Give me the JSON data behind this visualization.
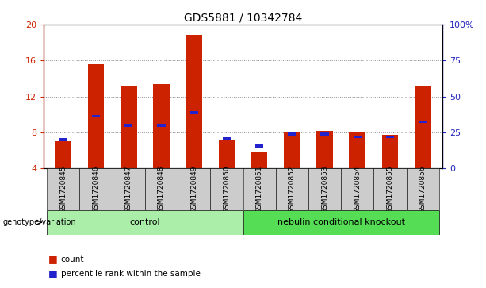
{
  "title": "GDS5881 / 10342784",
  "samples": [
    "GSM1720845",
    "GSM1720846",
    "GSM1720847",
    "GSM1720848",
    "GSM1720849",
    "GSM1720850",
    "GSM1720851",
    "GSM1720852",
    "GSM1720853",
    "GSM1720854",
    "GSM1720855",
    "GSM1720856"
  ],
  "red_values": [
    7.0,
    15.6,
    13.2,
    13.4,
    18.8,
    7.2,
    5.9,
    8.0,
    8.2,
    8.1,
    7.7,
    13.1
  ],
  "blue_values": [
    7.2,
    9.8,
    8.8,
    8.8,
    10.2,
    7.3,
    6.5,
    7.8,
    7.8,
    7.5,
    7.5,
    9.2
  ],
  "y_min": 4,
  "y_max": 20,
  "y_ticks_left": [
    4,
    8,
    12,
    16,
    20
  ],
  "y_ticks_right": [
    0,
    25,
    50,
    75,
    100
  ],
  "y_ticks_right_labels": [
    "0",
    "25",
    "50",
    "75",
    "100%"
  ],
  "control_label": "control",
  "knockout_label": "nebulin conditional knockout",
  "control_color": "#aaeeaa",
  "knockout_color": "#55dd55",
  "genotype_label": "genotype/variation",
  "legend_red": "count",
  "legend_blue": "percentile rank within the sample",
  "bar_color": "#cc2200",
  "blue_color": "#2222cc",
  "tick_color_left": "#cc2200",
  "tick_color_right": "#2222bb",
  "n_control": 6,
  "n_knockout": 6,
  "bar_width": 0.5,
  "grid_color": "#888888",
  "xtick_bg": "#cccccc"
}
